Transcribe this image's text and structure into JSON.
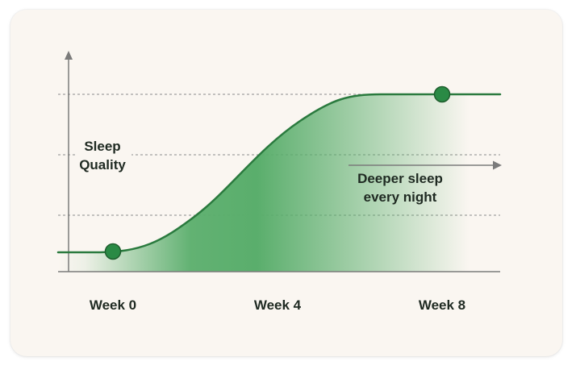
{
  "chart_data": {
    "type": "area",
    "ylabel_lines": [
      "Sleep",
      "Quality"
    ],
    "categories": [
      "Week 0",
      "Week 4",
      "Week 8"
    ],
    "annotation_lines": [
      "Deeper sleep",
      "every night"
    ],
    "markers": [
      {
        "label": "Week 0",
        "level": 0.1
      },
      {
        "label": "Week 8",
        "level": 0.9
      }
    ],
    "gridlines": 3,
    "colors": {
      "line": "#2a7a3e",
      "fill": "#5aae6c",
      "marker": "#2a8a45",
      "grid": "#8a8a8a",
      "axis": "#7b7b7b",
      "text": "#1f2a22"
    }
  }
}
